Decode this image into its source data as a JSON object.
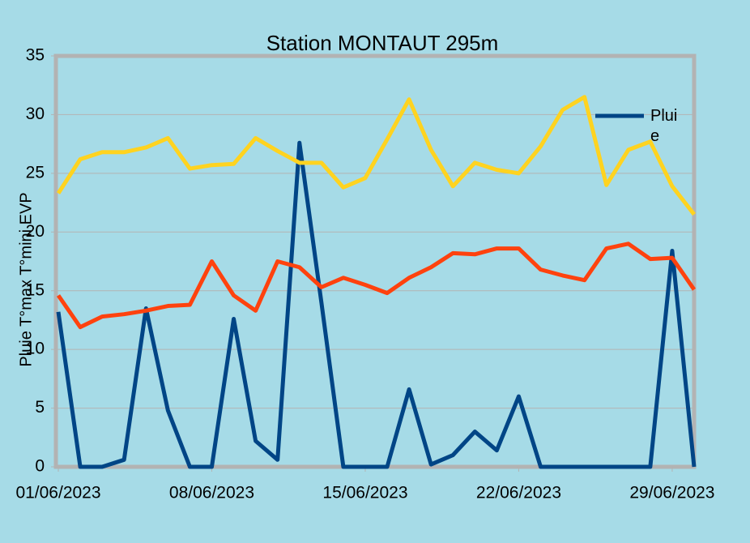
{
  "chart_data": {
    "type": "line",
    "title": "Station MONTAUT 295m",
    "y_label": "Pluie  T°max T°mini EVP",
    "x": [
      "01/06/2023",
      null,
      null,
      null,
      null,
      null,
      null,
      "08/06/2023",
      null,
      null,
      null,
      null,
      null,
      null,
      "15/06/2023",
      null,
      null,
      null,
      null,
      null,
      null,
      "22/06/2023",
      null,
      null,
      null,
      null,
      null,
      null,
      "29/06/2023",
      null
    ],
    "series": [
      {
        "name": "Pluie",
        "color": "#004586",
        "values": [
          13.2,
          0,
          0,
          0.6,
          13.5,
          4.8,
          0,
          0,
          12.6,
          2.2,
          0.6,
          27.6,
          14,
          0,
          0,
          0,
          6.6,
          0.2,
          1.0,
          3.0,
          1.4,
          6.0,
          0,
          0,
          0,
          0,
          0,
          0,
          18.4,
          0
        ]
      },
      {
        "color": "#ffd320",
        "values": [
          23.3,
          26.2,
          26.8,
          26.8,
          27.2,
          28.0,
          25.4,
          25.7,
          25.8,
          28.0,
          26.9,
          25.9,
          25.9,
          23.8,
          24.6,
          27.9,
          31.3,
          27.0,
          23.9,
          25.9,
          25.3,
          25.0,
          27.3,
          30.4,
          31.5,
          24.0,
          27.0,
          27.7,
          23.9,
          21.5
        ]
      },
      {
        "color": "#ff420e",
        "values": [
          14.6,
          11.9,
          12.8,
          13.0,
          13.3,
          13.7,
          13.8,
          17.5,
          14.6,
          13.3,
          17.5,
          17.0,
          15.3,
          16.1,
          15.5,
          14.8,
          16.1,
          17.0,
          18.2,
          18.1,
          18.6,
          18.6,
          16.8,
          16.3,
          15.9,
          18.6,
          19.0,
          17.7,
          17.8,
          15.1
        ]
      }
    ],
    "ylim": [
      0,
      35
    ],
    "yticks": [
      0,
      5,
      10,
      15,
      20,
      25,
      30,
      35
    ],
    "grid": true
  }
}
